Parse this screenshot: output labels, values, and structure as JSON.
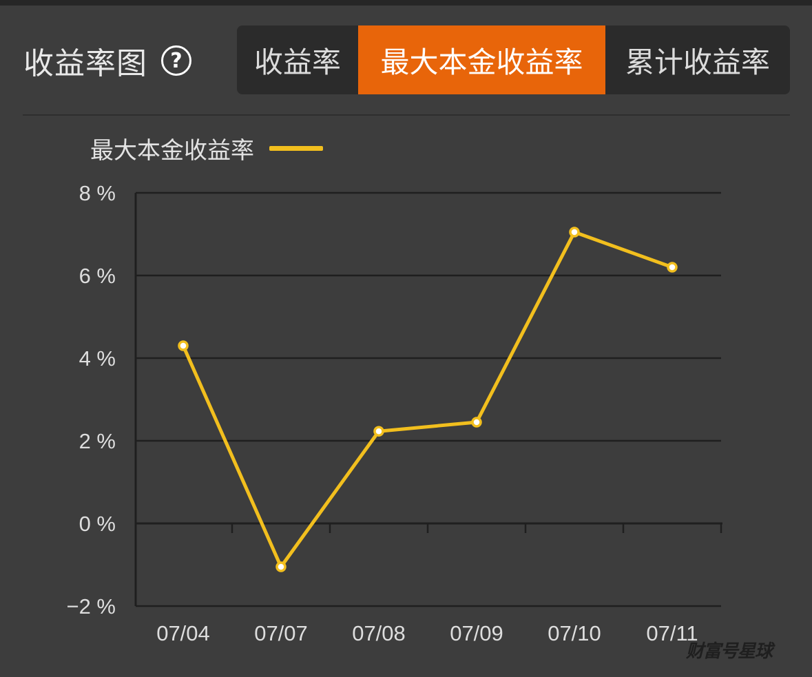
{
  "page_title": "收益率图",
  "help_icon": "question-circle-icon",
  "help_glyph": "?",
  "tabs": [
    {
      "label": "收益率",
      "active": false
    },
    {
      "label": "最大本金收益率",
      "active": true
    },
    {
      "label": "累计收益率",
      "active": false
    }
  ],
  "colors": {
    "background": "#3d3d3d",
    "active_tab": "#e8650a",
    "series_line": "#f2bf1e",
    "grid": "#1f1f1f"
  },
  "watermark": "财富号星球",
  "chart_data": {
    "type": "line",
    "title": "",
    "xlabel": "",
    "ylabel": "",
    "categories": [
      "07/04",
      "07/07",
      "07/08",
      "07/09",
      "07/10",
      "07/11"
    ],
    "series": [
      {
        "name": "最大本金收益率",
        "values": [
          4.3,
          -1.05,
          2.23,
          2.45,
          7.05,
          6.2
        ]
      }
    ],
    "ylim": [
      -2,
      8
    ],
    "y_ticks": [
      8,
      6,
      4,
      2,
      0,
      -2
    ],
    "y_tick_labels": [
      "8 %",
      "6 %",
      "4 %",
      "2 %",
      "0 %",
      "−2 %"
    ],
    "grid": true,
    "legend_position": "top-left"
  }
}
